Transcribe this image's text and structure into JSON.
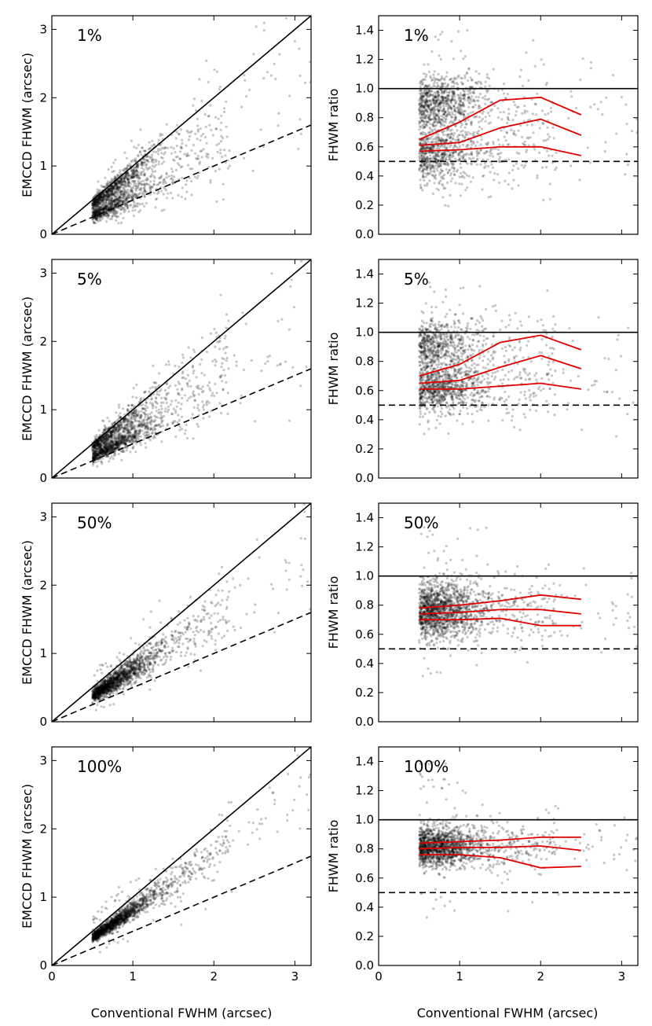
{
  "figure": {
    "shared_xlabel": "Conventional FWHM (arcsec)",
    "left_ylabel": "EMCCD FHWM (arcsec)",
    "right_ylabel": "FHWM ratio",
    "colors": {
      "points": "#000000",
      "curves": "#e00000",
      "lines": "#000000"
    }
  },
  "chart_data": [
    {
      "id": "left-1",
      "type": "scatter",
      "panel_label": "1%",
      "xlabel": "Conventional FWHM (arcsec)",
      "ylabel": "EMCCD FHWM (arcsec)",
      "xlim": [
        0,
        3.2
      ],
      "ylim": [
        0,
        3.2
      ],
      "x_ticks": [
        0,
        1,
        2,
        3
      ],
      "y_ticks": [
        0,
        1,
        2,
        3
      ],
      "reference_lines": [
        {
          "style": "solid",
          "slope": 1.0
        },
        {
          "style": "dashed",
          "slope": 0.5
        }
      ],
      "scatter_model": {
        "n": 1700,
        "ratio_low": 0.55,
        "ratio_high": 0.9,
        "ratio_spread": 0.1,
        "high_fraction": 0.5
      }
    },
    {
      "id": "right-1",
      "type": "scatter",
      "panel_label": "1%",
      "xlabel": "Conventional FWHM (arcsec)",
      "ylabel": "FHWM ratio",
      "xlim": [
        0,
        3.2
      ],
      "ylim": [
        0,
        1.5
      ],
      "x_ticks": [
        0,
        1,
        2,
        3
      ],
      "y_ticks": [
        0.0,
        0.2,
        0.4,
        0.6,
        0.8,
        1.0,
        1.2,
        1.4
      ],
      "reference_lines": [
        {
          "style": "solid",
          "y": 1.0
        },
        {
          "style": "dashed",
          "y": 0.5
        }
      ],
      "series": [
        {
          "name": "upper",
          "x": [
            0.5,
            1.0,
            1.5,
            2.0,
            2.5
          ],
          "values": [
            0.65,
            0.77,
            0.92,
            0.94,
            0.82
          ]
        },
        {
          "name": "median",
          "x": [
            0.5,
            1.0,
            1.5,
            2.0,
            2.5
          ],
          "values": [
            0.61,
            0.63,
            0.73,
            0.79,
            0.68
          ]
        },
        {
          "name": "lower",
          "x": [
            0.5,
            1.0,
            1.5,
            2.0,
            2.5
          ],
          "values": [
            0.57,
            0.58,
            0.6,
            0.6,
            0.54
          ]
        }
      ],
      "scatter_model": {
        "n": 1700,
        "ratio_low": 0.55,
        "ratio_high": 0.9,
        "ratio_spread": 0.1,
        "high_fraction": 0.5
      }
    },
    {
      "id": "left-2",
      "type": "scatter",
      "panel_label": "5%",
      "xlabel": "Conventional FWHM (arcsec)",
      "ylabel": "EMCCD FHWM (arcsec)",
      "xlim": [
        0,
        3.2
      ],
      "ylim": [
        0,
        3.2
      ],
      "x_ticks": [
        0,
        1,
        2,
        3
      ],
      "y_ticks": [
        0,
        1,
        2,
        3
      ],
      "reference_lines": [
        {
          "style": "solid",
          "slope": 1.0
        },
        {
          "style": "dashed",
          "slope": 0.5
        }
      ],
      "scatter_model": {
        "n": 1700,
        "ratio_low": 0.62,
        "ratio_high": 0.92,
        "ratio_spread": 0.09,
        "high_fraction": 0.4
      }
    },
    {
      "id": "right-2",
      "type": "scatter",
      "panel_label": "5%",
      "xlabel": "Conventional FWHM (arcsec)",
      "ylabel": "FHWM ratio",
      "xlim": [
        0,
        3.2
      ],
      "ylim": [
        0,
        1.5
      ],
      "x_ticks": [
        0,
        1,
        2,
        3
      ],
      "y_ticks": [
        0.0,
        0.2,
        0.4,
        0.6,
        0.8,
        1.0,
        1.2,
        1.4
      ],
      "reference_lines": [
        {
          "style": "solid",
          "y": 1.0
        },
        {
          "style": "dashed",
          "y": 0.5
        }
      ],
      "series": [
        {
          "name": "upper",
          "x": [
            0.5,
            1.0,
            1.5,
            2.0,
            2.5
          ],
          "values": [
            0.7,
            0.78,
            0.93,
            0.98,
            0.88
          ]
        },
        {
          "name": "median",
          "x": [
            0.5,
            1.0,
            1.5,
            2.0,
            2.5
          ],
          "values": [
            0.65,
            0.67,
            0.76,
            0.84,
            0.75
          ]
        },
        {
          "name": "lower",
          "x": [
            0.5,
            1.0,
            1.5,
            2.0,
            2.5
          ],
          "values": [
            0.61,
            0.61,
            0.63,
            0.65,
            0.61
          ]
        }
      ],
      "scatter_model": {
        "n": 1700,
        "ratio_low": 0.62,
        "ratio_high": 0.92,
        "ratio_spread": 0.09,
        "high_fraction": 0.4
      }
    },
    {
      "id": "left-3",
      "type": "scatter",
      "panel_label": "50%",
      "xlabel": "Conventional FWHM (arcsec)",
      "ylabel": "EMCCD FHWM (arcsec)",
      "xlim": [
        0,
        3.2
      ],
      "ylim": [
        0,
        3.2
      ],
      "x_ticks": [
        0,
        1,
        2,
        3
      ],
      "y_ticks": [
        0,
        1,
        2,
        3
      ],
      "reference_lines": [
        {
          "style": "solid",
          "slope": 1.0
        },
        {
          "style": "dashed",
          "slope": 0.5
        }
      ],
      "scatter_model": {
        "n": 1700,
        "ratio_low": 0.72,
        "ratio_high": 0.84,
        "ratio_spread": 0.08,
        "high_fraction": 0.35
      }
    },
    {
      "id": "right-3",
      "type": "scatter",
      "panel_label": "50%",
      "xlabel": "Conventional FWHM (arcsec)",
      "ylabel": "FHWM ratio",
      "xlim": [
        0,
        3.2
      ],
      "ylim": [
        0,
        1.5
      ],
      "x_ticks": [
        0,
        1,
        2,
        3
      ],
      "y_ticks": [
        0.0,
        0.2,
        0.4,
        0.6,
        0.8,
        1.0,
        1.2,
        1.4
      ],
      "reference_lines": [
        {
          "style": "solid",
          "y": 1.0
        },
        {
          "style": "dashed",
          "y": 0.5
        }
      ],
      "series": [
        {
          "name": "upper",
          "x": [
            0.5,
            1.0,
            1.5,
            2.0,
            2.5
          ],
          "values": [
            0.78,
            0.8,
            0.83,
            0.87,
            0.84
          ]
        },
        {
          "name": "median",
          "x": [
            0.5,
            1.0,
            1.5,
            2.0,
            2.5
          ],
          "values": [
            0.74,
            0.75,
            0.77,
            0.77,
            0.74
          ]
        },
        {
          "name": "lower",
          "x": [
            0.5,
            1.0,
            1.5,
            2.0,
            2.5
          ],
          "values": [
            0.7,
            0.7,
            0.71,
            0.66,
            0.66
          ]
        }
      ],
      "scatter_model": {
        "n": 1700,
        "ratio_low": 0.72,
        "ratio_high": 0.84,
        "ratio_spread": 0.08,
        "high_fraction": 0.35
      }
    },
    {
      "id": "left-4",
      "type": "scatter",
      "panel_label": "100%",
      "xlabel": "Conventional FWHM (arcsec)",
      "ylabel": "EMCCD FHWM (arcsec)",
      "xlim": [
        0,
        3.2
      ],
      "ylim": [
        0,
        3.2
      ],
      "x_ticks": [
        0,
        1,
        2,
        3
      ],
      "y_ticks": [
        0,
        1,
        2,
        3
      ],
      "reference_lines": [
        {
          "style": "solid",
          "slope": 1.0
        },
        {
          "style": "dashed",
          "slope": 0.5
        }
      ],
      "scatter_model": {
        "n": 1700,
        "ratio_low": 0.79,
        "ratio_high": 0.86,
        "ratio_spread": 0.06,
        "high_fraction": 0.35
      }
    },
    {
      "id": "right-4",
      "type": "scatter",
      "panel_label": "100%",
      "xlabel": "Conventional FWHM (arcsec)",
      "ylabel": "FHWM ratio",
      "xlim": [
        0,
        3.2
      ],
      "ylim": [
        0,
        1.5
      ],
      "x_ticks": [
        0,
        1,
        2,
        3
      ],
      "y_ticks": [
        0.0,
        0.2,
        0.4,
        0.6,
        0.8,
        1.0,
        1.2,
        1.4
      ],
      "reference_lines": [
        {
          "style": "solid",
          "y": 1.0
        },
        {
          "style": "dashed",
          "y": 0.5
        }
      ],
      "series": [
        {
          "name": "upper",
          "x": [
            0.5,
            1.0,
            1.5,
            2.0,
            2.5
          ],
          "values": [
            0.84,
            0.85,
            0.86,
            0.88,
            0.88
          ]
        },
        {
          "name": "median",
          "x": [
            0.5,
            1.0,
            1.5,
            2.0,
            2.5
          ],
          "values": [
            0.8,
            0.81,
            0.81,
            0.82,
            0.79
          ]
        },
        {
          "name": "lower",
          "x": [
            0.5,
            1.0,
            1.5,
            2.0,
            2.5
          ],
          "values": [
            0.76,
            0.76,
            0.74,
            0.67,
            0.68
          ]
        }
      ],
      "scatter_model": {
        "n": 1700,
        "ratio_low": 0.79,
        "ratio_high": 0.86,
        "ratio_spread": 0.06,
        "high_fraction": 0.35
      }
    }
  ]
}
